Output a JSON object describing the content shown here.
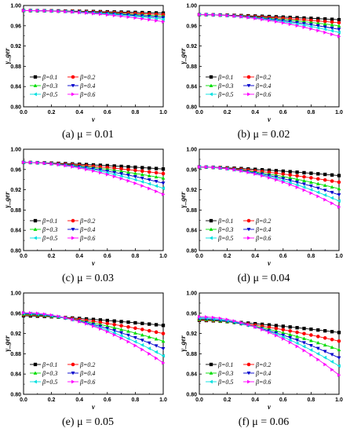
{
  "figure": {
    "legend_placement": "lower-left",
    "tick_labels_x": [
      "0.0",
      "0.2",
      "0.4",
      "0.6",
      "0.8",
      "1.0"
    ],
    "tick_labels_y": [
      "0.80",
      "0.84",
      "0.88",
      "0.92",
      "0.96",
      "1.00"
    ]
  },
  "chart_data": [
    {
      "type": "line",
      "caption_prefix": "(a)",
      "caption_rest": "μ = 0.01",
      "xlabel": "v",
      "ylabel": "γ_ger",
      "xlim": [
        0,
        1
      ],
      "ylim": [
        0.8,
        1.0
      ],
      "x": [
        0,
        0.05,
        0.1,
        0.15,
        0.2,
        0.25,
        0.3,
        0.35,
        0.4,
        0.45,
        0.5,
        0.55,
        0.6,
        0.65,
        0.7,
        0.75,
        0.8,
        0.85,
        0.9,
        0.95,
        1.0
      ],
      "series": [
        {
          "name": "β=0.1",
          "color": "#000000",
          "marker": "square",
          "start": 0.99,
          "end": 0.985,
          "curve": 1.4
        },
        {
          "name": "β=0.2",
          "color": "#ff0000",
          "marker": "circle",
          "start": 0.99,
          "end": 0.982,
          "curve": 1.5
        },
        {
          "name": "β=0.3",
          "color": "#00dd00",
          "marker": "triangle-up",
          "start": 0.99,
          "end": 0.979,
          "curve": 1.6
        },
        {
          "name": "β=0.4",
          "color": "#0000cc",
          "marker": "triangle-down",
          "start": 0.99,
          "end": 0.976,
          "curve": 1.7
        },
        {
          "name": "β=0.5",
          "color": "#00e0e0",
          "marker": "triangle-left",
          "start": 0.99,
          "end": 0.973,
          "curve": 1.8
        },
        {
          "name": "β=0.6",
          "color": "#ff00ff",
          "marker": "triangle-right",
          "start": 0.99,
          "end": 0.968,
          "curve": 1.9
        }
      ]
    },
    {
      "type": "line",
      "caption_prefix": "(b)",
      "caption_rest": "μ = 0.02",
      "xlabel": "v",
      "ylabel": "γ_ger",
      "xlim": [
        0,
        1
      ],
      "ylim": [
        0.8,
        1.0
      ],
      "x": [
        0,
        0.05,
        0.1,
        0.15,
        0.2,
        0.25,
        0.3,
        0.35,
        0.4,
        0.45,
        0.5,
        0.55,
        0.6,
        0.65,
        0.7,
        0.75,
        0.8,
        0.85,
        0.9,
        0.95,
        1.0
      ],
      "series": [
        {
          "name": "β=0.1",
          "color": "#000000",
          "marker": "square",
          "start": 0.982,
          "end": 0.972,
          "curve": 1.4
        },
        {
          "name": "β=0.2",
          "color": "#ff0000",
          "marker": "circle",
          "start": 0.982,
          "end": 0.966,
          "curve": 1.5
        },
        {
          "name": "β=0.3",
          "color": "#00dd00",
          "marker": "triangle-up",
          "start": 0.982,
          "end": 0.96,
          "curve": 1.6
        },
        {
          "name": "β=0.4",
          "color": "#0000cc",
          "marker": "triangle-down",
          "start": 0.982,
          "end": 0.953,
          "curve": 1.7
        },
        {
          "name": "β=0.5",
          "color": "#00e0e0",
          "marker": "triangle-left",
          "start": 0.982,
          "end": 0.947,
          "curve": 1.8
        },
        {
          "name": "β=0.6",
          "color": "#ff00ff",
          "marker": "triangle-right",
          "start": 0.982,
          "end": 0.939,
          "curve": 1.9
        }
      ]
    },
    {
      "type": "line",
      "caption_prefix": "(c)",
      "caption_rest": "μ = 0.03",
      "xlabel": "v",
      "ylabel": "γ_ger",
      "xlim": [
        0,
        1
      ],
      "ylim": [
        0.8,
        1.0
      ],
      "x": [
        0,
        0.05,
        0.1,
        0.15,
        0.2,
        0.25,
        0.3,
        0.35,
        0.4,
        0.45,
        0.5,
        0.55,
        0.6,
        0.65,
        0.7,
        0.75,
        0.8,
        0.85,
        0.9,
        0.95,
        1.0
      ],
      "series": [
        {
          "name": "β=0.1",
          "color": "#000000",
          "marker": "square",
          "start": 0.974,
          "end": 0.961,
          "curve": 1.4
        },
        {
          "name": "β=0.2",
          "color": "#ff0000",
          "marker": "circle",
          "start": 0.974,
          "end": 0.952,
          "curve": 1.5
        },
        {
          "name": "β=0.3",
          "color": "#00dd00",
          "marker": "triangle-up",
          "start": 0.974,
          "end": 0.943,
          "curve": 1.6
        },
        {
          "name": "β=0.4",
          "color": "#0000cc",
          "marker": "triangle-down",
          "start": 0.974,
          "end": 0.933,
          "curve": 1.7
        },
        {
          "name": "β=0.5",
          "color": "#00e0e0",
          "marker": "triangle-left",
          "start": 0.974,
          "end": 0.923,
          "curve": 1.8
        },
        {
          "name": "β=0.6",
          "color": "#ff00ff",
          "marker": "triangle-right",
          "start": 0.974,
          "end": 0.911,
          "curve": 1.9
        }
      ]
    },
    {
      "type": "line",
      "caption_prefix": "(d)",
      "caption_rest": "μ = 0.04",
      "xlabel": "v",
      "ylabel": "γ_ger",
      "xlim": [
        0,
        1
      ],
      "ylim": [
        0.8,
        1.0
      ],
      "x": [
        0,
        0.05,
        0.1,
        0.15,
        0.2,
        0.25,
        0.3,
        0.35,
        0.4,
        0.45,
        0.5,
        0.55,
        0.6,
        0.65,
        0.7,
        0.75,
        0.8,
        0.85,
        0.9,
        0.95,
        1.0
      ],
      "series": [
        {
          "name": "β=0.1",
          "color": "#000000",
          "marker": "square",
          "start": 0.965,
          "end": 0.948,
          "curve": 1.4
        },
        {
          "name": "β=0.2",
          "color": "#ff0000",
          "marker": "circle",
          "start": 0.965,
          "end": 0.935,
          "curve": 1.5
        },
        {
          "name": "β=0.3",
          "color": "#00dd00",
          "marker": "triangle-up",
          "start": 0.965,
          "end": 0.922,
          "curve": 1.6
        },
        {
          "name": "β=0.4",
          "color": "#0000cc",
          "marker": "triangle-down",
          "start": 0.965,
          "end": 0.91,
          "curve": 1.7
        },
        {
          "name": "β=0.5",
          "color": "#00e0e0",
          "marker": "triangle-left",
          "start": 0.965,
          "end": 0.898,
          "curve": 1.8
        },
        {
          "name": "β=0.6",
          "color": "#ff00ff",
          "marker": "triangle-right",
          "start": 0.965,
          "end": 0.886,
          "curve": 1.9
        }
      ]
    },
    {
      "type": "line",
      "caption_prefix": "(e)",
      "caption_rest": "μ = 0.05",
      "xlabel": "v",
      "ylabel": "γ_ger",
      "xlim": [
        0,
        1
      ],
      "ylim": [
        0.8,
        1.0
      ],
      "x": [
        0,
        0.05,
        0.1,
        0.15,
        0.2,
        0.25,
        0.3,
        0.35,
        0.4,
        0.45,
        0.5,
        0.55,
        0.6,
        0.65,
        0.7,
        0.75,
        0.8,
        0.85,
        0.9,
        0.95,
        1.0
      ],
      "series": [
        {
          "name": "β=0.1",
          "color": "#000000",
          "marker": "square",
          "start": 0.955,
          "end": 0.936,
          "curve": 1.4
        },
        {
          "name": "β=0.2",
          "color": "#ff0000",
          "marker": "circle",
          "start": 0.957,
          "end": 0.92,
          "curve": 1.5
        },
        {
          "name": "β=0.3",
          "color": "#00dd00",
          "marker": "triangle-up",
          "start": 0.958,
          "end": 0.905,
          "curve": 1.6
        },
        {
          "name": "β=0.4",
          "color": "#0000cc",
          "marker": "triangle-down",
          "start": 0.959,
          "end": 0.89,
          "curve": 1.7
        },
        {
          "name": "β=0.5",
          "color": "#00e0e0",
          "marker": "triangle-left",
          "start": 0.96,
          "end": 0.876,
          "curve": 1.8
        },
        {
          "name": "β=0.6",
          "color": "#ff00ff",
          "marker": "triangle-right",
          "start": 0.961,
          "end": 0.862,
          "curve": 1.9
        }
      ]
    },
    {
      "type": "line",
      "caption_prefix": "(f)",
      "caption_rest": "μ = 0.06",
      "xlabel": "v",
      "ylabel": "γ_ger",
      "xlim": [
        0,
        1
      ],
      "ylim": [
        0.8,
        1.0
      ],
      "x": [
        0,
        0.05,
        0.1,
        0.15,
        0.2,
        0.25,
        0.3,
        0.35,
        0.4,
        0.45,
        0.5,
        0.55,
        0.6,
        0.65,
        0.7,
        0.75,
        0.8,
        0.85,
        0.9,
        0.95,
        1.0
      ],
      "series": [
        {
          "name": "β=0.1",
          "color": "#000000",
          "marker": "square",
          "start": 0.946,
          "end": 0.922,
          "curve": 1.4
        },
        {
          "name": "β=0.2",
          "color": "#ff0000",
          "marker": "circle",
          "start": 0.947,
          "end": 0.905,
          "curve": 1.5
        },
        {
          "name": "β=0.3",
          "color": "#00dd00",
          "marker": "triangle-up",
          "start": 0.948,
          "end": 0.888,
          "curve": 1.6
        },
        {
          "name": "β=0.4",
          "color": "#0000cc",
          "marker": "triangle-down",
          "start": 0.949,
          "end": 0.872,
          "curve": 1.7
        },
        {
          "name": "β=0.5",
          "color": "#00e0e0",
          "marker": "triangle-left",
          "start": 0.951,
          "end": 0.856,
          "curve": 1.8
        },
        {
          "name": "β=0.6",
          "color": "#ff00ff",
          "marker": "triangle-right",
          "start": 0.953,
          "end": 0.838,
          "curve": 1.9
        }
      ]
    }
  ]
}
